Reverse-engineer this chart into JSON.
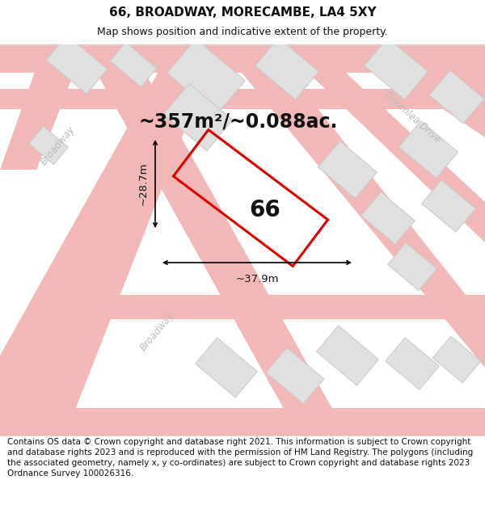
{
  "title": "66, BROADWAY, MORECAMBE, LA4 5XY",
  "subtitle": "Map shows position and indicative extent of the property.",
  "area_text": "~357m²/~0.088ac.",
  "number_label": "66",
  "dim_width": "~37.9m",
  "dim_height": "~28.7m",
  "footer": "Contains OS data © Crown copyright and database right 2021. This information is subject to Crown copyright and database rights 2023 and is reproduced with the permission of HM Land Registry. The polygons (including the associated geometry, namely x, y co-ordinates) are subject to Crown copyright and database rights 2023 Ordnance Survey 100026316.",
  "bg_color": "#ffffff",
  "map_bg": "#ffffff",
  "road_color": "#f2b8b8",
  "building_fill": "#e0e0e0",
  "building_edge": "#cccccc",
  "plot_color": "#dd0000",
  "road_label_color": "#bbbbbb",
  "title_fontsize": 11,
  "subtitle_fontsize": 9,
  "area_fontsize": 17,
  "label_fontsize": 20,
  "dim_fontsize": 9.5,
  "footer_fontsize": 7.5
}
